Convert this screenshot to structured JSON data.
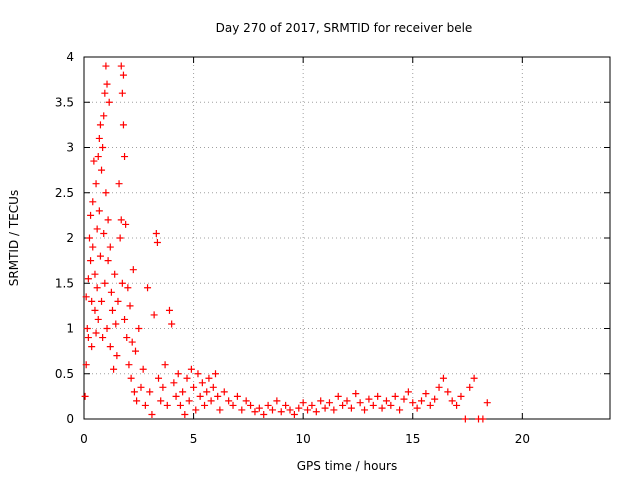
{
  "chart_data": {
    "type": "scatter",
    "title": "Day 270 of 2017, SRMTID for receiver bele",
    "xlabel": "GPS time / hours",
    "ylabel": "SRMTID / TECUs",
    "xlim": [
      0,
      24
    ],
    "ylim": [
      0,
      4
    ],
    "xticks": [
      0,
      5,
      10,
      15,
      20
    ],
    "yticks": [
      0,
      0.5,
      1,
      1.5,
      2,
      2.5,
      3,
      3.5,
      4
    ],
    "grid": true,
    "marker": "+",
    "series": [
      {
        "name": "SRMTID",
        "color": "#ff0000",
        "points": [
          [
            0.05,
            0.25
          ],
          [
            0.1,
            0.6
          ],
          [
            0.1,
            1.35
          ],
          [
            0.15,
            1.0
          ],
          [
            0.2,
            1.55
          ],
          [
            0.2,
            0.9
          ],
          [
            0.25,
            2.0
          ],
          [
            0.3,
            1.75
          ],
          [
            0.3,
            2.25
          ],
          [
            0.35,
            1.3
          ],
          [
            0.35,
            0.8
          ],
          [
            0.4,
            2.4
          ],
          [
            0.4,
            1.9
          ],
          [
            0.45,
            2.85
          ],
          [
            0.5,
            1.6
          ],
          [
            0.5,
            1.2
          ],
          [
            0.55,
            2.6
          ],
          [
            0.55,
            0.95
          ],
          [
            0.6,
            2.1
          ],
          [
            0.6,
            1.45
          ],
          [
            0.65,
            2.9
          ],
          [
            0.65,
            1.1
          ],
          [
            0.7,
            3.1
          ],
          [
            0.7,
            2.3
          ],
          [
            0.75,
            3.25
          ],
          [
            0.75,
            1.8
          ],
          [
            0.8,
            2.75
          ],
          [
            0.8,
            1.3
          ],
          [
            0.85,
            3.0
          ],
          [
            0.85,
            0.9
          ],
          [
            0.9,
            3.35
          ],
          [
            0.9,
            2.05
          ],
          [
            0.95,
            3.6
          ],
          [
            0.95,
            1.5
          ],
          [
            1.0,
            3.9
          ],
          [
            1.0,
            2.5
          ],
          [
            1.05,
            3.7
          ],
          [
            1.05,
            1.0
          ],
          [
            1.1,
            2.2
          ],
          [
            1.1,
            1.75
          ],
          [
            1.15,
            3.5
          ],
          [
            1.2,
            1.9
          ],
          [
            1.2,
            0.8
          ],
          [
            1.25,
            1.4
          ],
          [
            1.3,
            1.2
          ],
          [
            1.35,
            0.55
          ],
          [
            1.4,
            1.6
          ],
          [
            1.45,
            1.05
          ],
          [
            1.5,
            0.7
          ],
          [
            1.55,
            1.3
          ],
          [
            1.6,
            2.6
          ],
          [
            1.65,
            2.0
          ],
          [
            1.7,
            3.9
          ],
          [
            1.7,
            2.2
          ],
          [
            1.75,
            3.6
          ],
          [
            1.75,
            1.5
          ],
          [
            1.8,
            3.8
          ],
          [
            1.8,
            3.25
          ],
          [
            1.85,
            2.9
          ],
          [
            1.85,
            1.1
          ],
          [
            1.9,
            2.15
          ],
          [
            1.95,
            0.9
          ],
          [
            2.0,
            1.45
          ],
          [
            2.05,
            0.6
          ],
          [
            2.1,
            1.25
          ],
          [
            2.15,
            0.45
          ],
          [
            2.2,
            0.85
          ],
          [
            2.25,
            1.65
          ],
          [
            2.3,
            0.3
          ],
          [
            2.35,
            0.75
          ],
          [
            2.4,
            0.2
          ],
          [
            2.5,
            1.0
          ],
          [
            2.6,
            0.35
          ],
          [
            2.7,
            0.55
          ],
          [
            2.8,
            0.15
          ],
          [
            2.9,
            1.45
          ],
          [
            3.0,
            0.3
          ],
          [
            3.1,
            0.05
          ],
          [
            3.2,
            1.15
          ],
          [
            3.3,
            2.05
          ],
          [
            3.35,
            1.95
          ],
          [
            3.4,
            0.45
          ],
          [
            3.5,
            0.2
          ],
          [
            3.6,
            0.35
          ],
          [
            3.7,
            0.6
          ],
          [
            3.8,
            0.15
          ],
          [
            3.9,
            1.2
          ],
          [
            4.0,
            1.05
          ],
          [
            4.1,
            0.4
          ],
          [
            4.2,
            0.25
          ],
          [
            4.3,
            0.5
          ],
          [
            4.4,
            0.15
          ],
          [
            4.5,
            0.3
          ],
          [
            4.6,
            0.05
          ],
          [
            4.7,
            0.45
          ],
          [
            4.8,
            0.2
          ],
          [
            4.9,
            0.55
          ],
          [
            5.0,
            0.35
          ],
          [
            5.1,
            0.1
          ],
          [
            5.2,
            0.5
          ],
          [
            5.3,
            0.25
          ],
          [
            5.4,
            0.4
          ],
          [
            5.5,
            0.15
          ],
          [
            5.6,
            0.3
          ],
          [
            5.7,
            0.45
          ],
          [
            5.8,
            0.2
          ],
          [
            5.9,
            0.35
          ],
          [
            6.0,
            0.5
          ],
          [
            6.1,
            0.25
          ],
          [
            6.2,
            0.1
          ],
          [
            6.4,
            0.3
          ],
          [
            6.6,
            0.2
          ],
          [
            6.8,
            0.15
          ],
          [
            7.0,
            0.25
          ],
          [
            7.2,
            0.1
          ],
          [
            7.4,
            0.2
          ],
          [
            7.6,
            0.15
          ],
          [
            7.8,
            0.08
          ],
          [
            8.0,
            0.12
          ],
          [
            8.2,
            0.05
          ],
          [
            8.4,
            0.15
          ],
          [
            8.6,
            0.1
          ],
          [
            8.8,
            0.2
          ],
          [
            9.0,
            0.08
          ],
          [
            9.2,
            0.15
          ],
          [
            9.4,
            0.1
          ],
          [
            9.6,
            0.05
          ],
          [
            9.8,
            0.12
          ],
          [
            10.0,
            0.18
          ],
          [
            10.2,
            0.1
          ],
          [
            10.4,
            0.15
          ],
          [
            10.6,
            0.08
          ],
          [
            10.8,
            0.2
          ],
          [
            11.0,
            0.12
          ],
          [
            11.2,
            0.18
          ],
          [
            11.4,
            0.1
          ],
          [
            11.6,
            0.25
          ],
          [
            11.8,
            0.15
          ],
          [
            12.0,
            0.2
          ],
          [
            12.2,
            0.12
          ],
          [
            12.4,
            0.28
          ],
          [
            12.6,
            0.18
          ],
          [
            12.8,
            0.1
          ],
          [
            13.0,
            0.22
          ],
          [
            13.2,
            0.15
          ],
          [
            13.4,
            0.25
          ],
          [
            13.6,
            0.12
          ],
          [
            13.8,
            0.2
          ],
          [
            14.0,
            0.15
          ],
          [
            14.2,
            0.25
          ],
          [
            14.4,
            0.1
          ],
          [
            14.6,
            0.22
          ],
          [
            14.8,
            0.3
          ],
          [
            15.0,
            0.18
          ],
          [
            15.2,
            0.12
          ],
          [
            15.4,
            0.2
          ],
          [
            15.6,
            0.28
          ],
          [
            15.8,
            0.15
          ],
          [
            16.0,
            0.22
          ],
          [
            16.2,
            0.35
          ],
          [
            16.4,
            0.45
          ],
          [
            16.6,
            0.3
          ],
          [
            16.8,
            0.2
          ],
          [
            17.0,
            0.15
          ],
          [
            17.2,
            0.25
          ],
          [
            17.4,
            0.0
          ],
          [
            17.6,
            0.35
          ],
          [
            17.8,
            0.45
          ],
          [
            18.0,
            0.0
          ],
          [
            18.2,
            0.0
          ],
          [
            18.4,
            0.18
          ]
        ]
      }
    ]
  }
}
